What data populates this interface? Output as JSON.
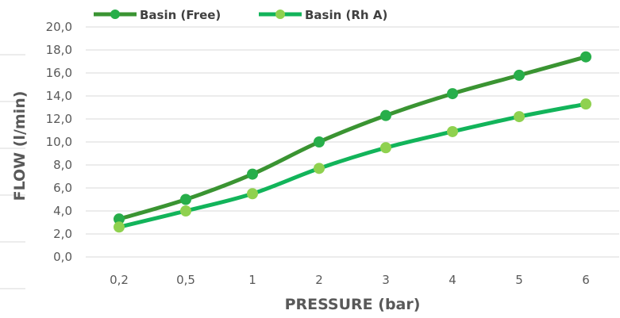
{
  "chart_data": {
    "type": "line",
    "categories": [
      "0,2",
      "0,5",
      "1",
      "2",
      "3",
      "4",
      "5",
      "6"
    ],
    "series": [
      {
        "name": "Basin (Free)",
        "values": [
          3.3,
          5.0,
          7.2,
          10.0,
          12.3,
          14.2,
          15.8,
          17.4
        ],
        "line_color": "#3a9432",
        "marker_color": "#27ae4a"
      },
      {
        "name": "Basin (Rh A)",
        "values": [
          2.6,
          4.0,
          5.5,
          7.7,
          9.5,
          10.9,
          12.2,
          13.3
        ],
        "line_color": "#12b45a",
        "marker_color": "#8fd14f"
      }
    ],
    "y_ticks": [
      "0,0",
      "2,0",
      "4,0",
      "6,0",
      "8,0",
      "10,0",
      "12,0",
      "14,0",
      "16,0",
      "18,0",
      "20,0"
    ],
    "xlabel": "PRESSURE (bar)",
    "ylabel": "FLOW (l/min)",
    "ylim": [
      0,
      20
    ],
    "grid": true,
    "legend_position": "top-left"
  }
}
